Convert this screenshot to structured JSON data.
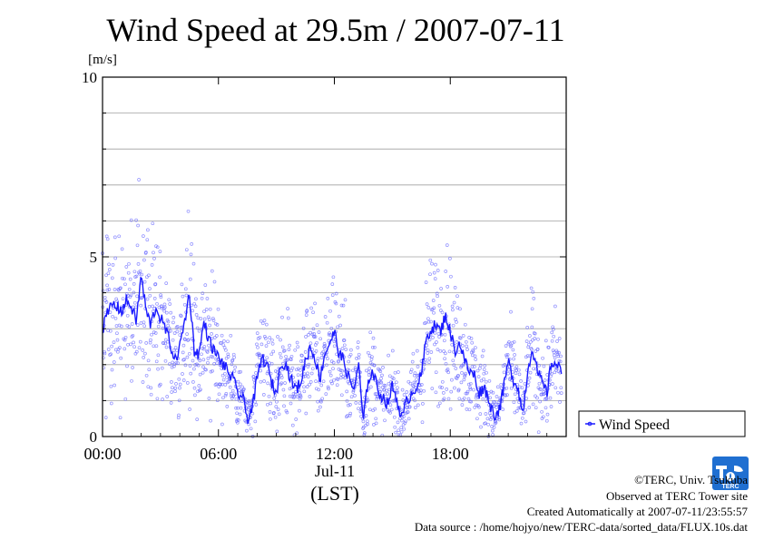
{
  "chart_data": {
    "type": "scatter",
    "title": "Wind Speed at 29.5m / 2007-07-11",
    "ylabel": "[m/s]",
    "xlabel": "(LST)",
    "date_label": "Jul-11",
    "ylim": [
      0,
      10
    ],
    "xlim_hours": [
      0,
      24
    ],
    "y_ticks": [
      {
        "value": 0,
        "label": "0"
      },
      {
        "value": 5,
        "label": "5"
      },
      {
        "value": 10,
        "label": "10"
      }
    ],
    "y_grid": [
      1,
      2,
      3,
      4,
      6,
      7,
      8,
      9
    ],
    "x_ticks": [
      {
        "value": 0,
        "label": "00:00"
      },
      {
        "value": 6,
        "label": "06:00"
      },
      {
        "value": 12,
        "label": "12:00"
      },
      {
        "value": 18,
        "label": "18:00"
      }
    ],
    "grid": true,
    "legend_position": "outside-right-bottom",
    "series": [
      {
        "name": "Wind Speed",
        "color": "#1a1aff",
        "x_hours": [
          0.0,
          0.25,
          0.5,
          0.75,
          1.0,
          1.25,
          1.5,
          1.75,
          2.0,
          2.25,
          2.5,
          2.75,
          3.0,
          3.25,
          3.5,
          3.75,
          4.0,
          4.25,
          4.5,
          4.75,
          5.0,
          5.25,
          5.5,
          5.75,
          6.0,
          6.25,
          6.5,
          6.75,
          7.0,
          7.25,
          7.5,
          7.75,
          8.0,
          8.25,
          8.5,
          8.75,
          9.0,
          9.25,
          9.5,
          9.75,
          10.0,
          10.25,
          10.5,
          10.75,
          11.0,
          11.25,
          11.5,
          11.75,
          12.0,
          12.25,
          12.5,
          12.75,
          13.0,
          13.25,
          13.5,
          13.75,
          14.0,
          14.25,
          14.5,
          14.75,
          15.0,
          15.25,
          15.5,
          15.75,
          16.0,
          16.25,
          16.5,
          16.75,
          17.0,
          17.25,
          17.5,
          17.75,
          18.0,
          18.25,
          18.5,
          18.75,
          19.0,
          19.25,
          19.5,
          19.75,
          20.0,
          20.25,
          20.5,
          20.75,
          21.0,
          21.25,
          21.5,
          21.75,
          22.0,
          22.25,
          22.5,
          22.75,
          23.0,
          23.25,
          23.5,
          23.75
        ],
        "values": [
          3.0,
          3.4,
          3.7,
          3.6,
          3.5,
          3.8,
          3.6,
          3.2,
          4.5,
          3.5,
          3.1,
          3.6,
          3.3,
          3.0,
          2.6,
          2.1,
          2.5,
          3.2,
          4.0,
          2.4,
          2.3,
          3.2,
          2.7,
          2.4,
          2.2,
          2.0,
          1.8,
          1.6,
          1.2,
          1.1,
          0.5,
          0.8,
          1.6,
          2.2,
          2.0,
          1.5,
          1.2,
          2.1,
          2.0,
          1.6,
          1.3,
          1.5,
          2.1,
          2.5,
          2.2,
          1.6,
          2.3,
          2.6,
          2.9,
          2.3,
          2.1,
          1.6,
          1.3,
          2.0,
          0.4,
          1.6,
          1.8,
          1.3,
          1.1,
          0.9,
          1.4,
          1.0,
          0.5,
          1.0,
          1.2,
          1.4,
          1.7,
          2.7,
          3.0,
          3.1,
          2.9,
          3.4,
          2.9,
          2.4,
          2.6,
          2.1,
          1.8,
          1.7,
          1.2,
          1.4,
          1.0,
          0.6,
          0.7,
          1.3,
          2.1,
          1.6,
          1.4,
          0.6,
          1.8,
          2.5,
          1.8,
          1.5,
          1.2,
          2.1,
          2.0,
          1.8
        ]
      }
    ],
    "scatter_style": {
      "color": "#6b6bff",
      "count": 1500
    }
  },
  "footer": {
    "copyright": "©TERC, Univ. Tsukuba",
    "observed": "Observed at TERC Tower site",
    "created": "Created Automatically at 2007-07-11/23:55:57",
    "source": "Data source : /home/hojyo/new/TERC-data/sorted_data/FLUX.10s.dat"
  },
  "logo": {
    "text": "TERC",
    "color": "#1f6fd1"
  }
}
